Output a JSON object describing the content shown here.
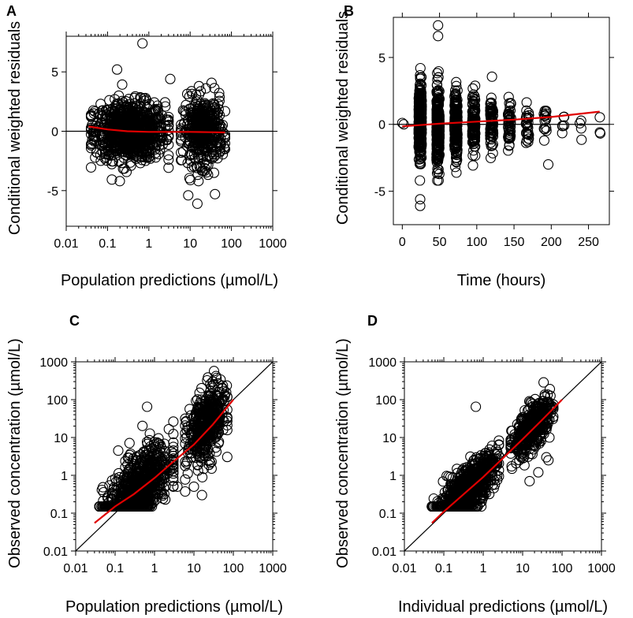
{
  "colors": {
    "smooth": "#e00000",
    "axis": "#000000",
    "points": "#000000"
  },
  "chart_data": [
    {
      "panel": "A",
      "type": "scatter",
      "title": "",
      "xlabel": "Population predictions (µmol/L)",
      "ylabel": "Conditional weighted residuals",
      "xscale": "log",
      "xlim": [
        0.01,
        1000
      ],
      "ylim": [
        -8,
        8
      ],
      "xticks": [
        0.01,
        0.1,
        1,
        10,
        100,
        1000
      ],
      "xtick_labels": [
        "0.01",
        "0.1",
        "1",
        "10",
        "100",
        "1000"
      ],
      "yticks": [
        -5,
        0,
        5
      ],
      "ytick_labels": [
        "-5",
        "0",
        "5"
      ],
      "reference_line": {
        "kind": "horizontal",
        "y": 0
      },
      "clusters": [
        {
          "x_range": [
            0.04,
            3.0
          ],
          "y_sd": 1.2,
          "n": 900
        },
        {
          "x_range": [
            6,
            70
          ],
          "y_sd": 1.4,
          "n": 450
        }
      ],
      "notable_points": [
        [
          0.7,
          7.4
        ],
        [
          0.17,
          5.2
        ],
        [
          3.3,
          4.4
        ],
        [
          15,
          -6.1
        ],
        [
          9,
          -5.4
        ],
        [
          40,
          -5.3
        ]
      ],
      "smooth_line": {
        "x": [
          0.035,
          0.1,
          0.3,
          1,
          3,
          10,
          30,
          70
        ],
        "y": [
          0.4,
          0.15,
          0.0,
          -0.05,
          -0.05,
          -0.05,
          -0.08,
          -0.1
        ]
      }
    },
    {
      "panel": "B",
      "type": "scatter",
      "title": "",
      "xlabel": "Time (hours)",
      "ylabel": "Conditional weighted residuals",
      "xscale": "linear",
      "xlim": [
        -12,
        278
      ],
      "ylim": [
        -7.5,
        8
      ],
      "xticks": [
        0,
        50,
        100,
        150,
        200,
        250
      ],
      "xtick_labels": [
        "0",
        "50",
        "100",
        "150",
        "200",
        "250"
      ],
      "yticks": [
        -5,
        0,
        5
      ],
      "ytick_labels": [
        "-5",
        "0",
        "5"
      ],
      "reference_line": {
        "kind": "horizontal",
        "y": 0
      },
      "time_columns": [
        {
          "t": 24,
          "n": 380,
          "sd": 1.4
        },
        {
          "t": 48,
          "n": 300,
          "sd": 1.4
        },
        {
          "t": 72,
          "n": 200,
          "sd": 1.2
        },
        {
          "t": 96,
          "n": 120,
          "sd": 1.1
        },
        {
          "t": 120,
          "n": 80,
          "sd": 1.0
        },
        {
          "t": 144,
          "n": 50,
          "sd": 0.9
        },
        {
          "t": 168,
          "n": 30,
          "sd": 0.8
        },
        {
          "t": 192,
          "n": 15,
          "sd": 0.9
        },
        {
          "t": 216,
          "n": 6,
          "sd": 0.6
        },
        {
          "t": 240,
          "n": 4,
          "sd": 0.5
        },
        {
          "t": 264,
          "n": 3,
          "sd": 0.5
        }
      ],
      "notable_points": [
        [
          0,
          0.1
        ],
        [
          2,
          0
        ],
        [
          48,
          7.4
        ],
        [
          48,
          6.6
        ],
        [
          24,
          -6.1
        ],
        [
          24,
          -5.6
        ],
        [
          196,
          -3.0
        ]
      ],
      "smooth_line": {
        "x": [
          0,
          50,
          100,
          150,
          200,
          265
        ],
        "y": [
          -0.15,
          0.05,
          0.2,
          0.35,
          0.55,
          0.95
        ]
      }
    },
    {
      "panel": "C",
      "type": "scatter",
      "title": "",
      "xlabel": "Population predictions (µmol/L)",
      "ylabel": "Observed concentration (µmol/L)",
      "xscale": "log",
      "yscale": "log",
      "xlim": [
        0.01,
        1000
      ],
      "ylim": [
        0.01,
        1000
      ],
      "xticks": [
        0.01,
        0.1,
        1,
        10,
        100,
        1000
      ],
      "xtick_labels": [
        "0.01",
        "0.1",
        "1",
        "10",
        "100",
        "1000"
      ],
      "yticks": [
        0.01,
        0.1,
        1,
        10,
        100,
        1000
      ],
      "ytick_labels": [
        "0.01",
        "0.1",
        "1",
        "10",
        "100",
        "1000"
      ],
      "reference_line": {
        "kind": "identity"
      },
      "clusters": [
        {
          "x_range": [
            0.04,
            3.0
          ],
          "log_spread": 0.45,
          "y_floor": 0.15,
          "n": 900
        },
        {
          "x_range": [
            6,
            70
          ],
          "log_spread": 0.45,
          "y_floor": 0.15,
          "n": 450
        }
      ],
      "notable_points": [
        [
          0.65,
          65
        ],
        [
          0.12,
          4.5
        ],
        [
          16,
          0.3
        ],
        [
          10,
          0.5
        ],
        [
          28,
          1.5
        ],
        [
          3.8,
          0.5
        ]
      ],
      "smooth_line": {
        "x": [
          0.03,
          0.1,
          0.3,
          1,
          3,
          10,
          30,
          100
        ],
        "y": [
          0.055,
          0.15,
          0.32,
          0.85,
          2.3,
          6.5,
          22,
          100
        ]
      }
    },
    {
      "panel": "D",
      "type": "scatter",
      "title": "",
      "xlabel": "Individual predictions (µmol/L)",
      "ylabel": "Observed concentration (µmol/L)",
      "xscale": "log",
      "yscale": "log",
      "xlim": [
        0.01,
        1000
      ],
      "ylim": [
        0.01,
        1000
      ],
      "xticks": [
        0.01,
        0.1,
        1,
        10,
        100,
        1000
      ],
      "xtick_labels": [
        "0.01",
        "0.1",
        "1",
        "10",
        "100",
        "1000"
      ],
      "yticks": [
        0.01,
        0.1,
        1,
        10,
        100,
        1000
      ],
      "ytick_labels": [
        "0.01",
        "0.1",
        "1",
        "10",
        "100",
        "1000"
      ],
      "reference_line": {
        "kind": "identity"
      },
      "clusters": [
        {
          "x_range": [
            0.05,
            2.5
          ],
          "log_spread": 0.3,
          "y_floor": 0.15,
          "n": 900
        },
        {
          "x_range": [
            5,
            60
          ],
          "log_spread": 0.28,
          "y_floor": 0.15,
          "n": 450
        }
      ],
      "notable_points": [
        [
          0.65,
          65
        ],
        [
          15,
          0.7
        ],
        [
          40,
          3.0
        ],
        [
          45,
          2.5
        ],
        [
          25,
          1.2
        ]
      ],
      "smooth_line": {
        "x": [
          0.05,
          0.1,
          0.3,
          1,
          3,
          10,
          30,
          100
        ],
        "y": [
          0.055,
          0.11,
          0.3,
          0.9,
          2.7,
          9,
          28,
          100
        ]
      }
    }
  ]
}
